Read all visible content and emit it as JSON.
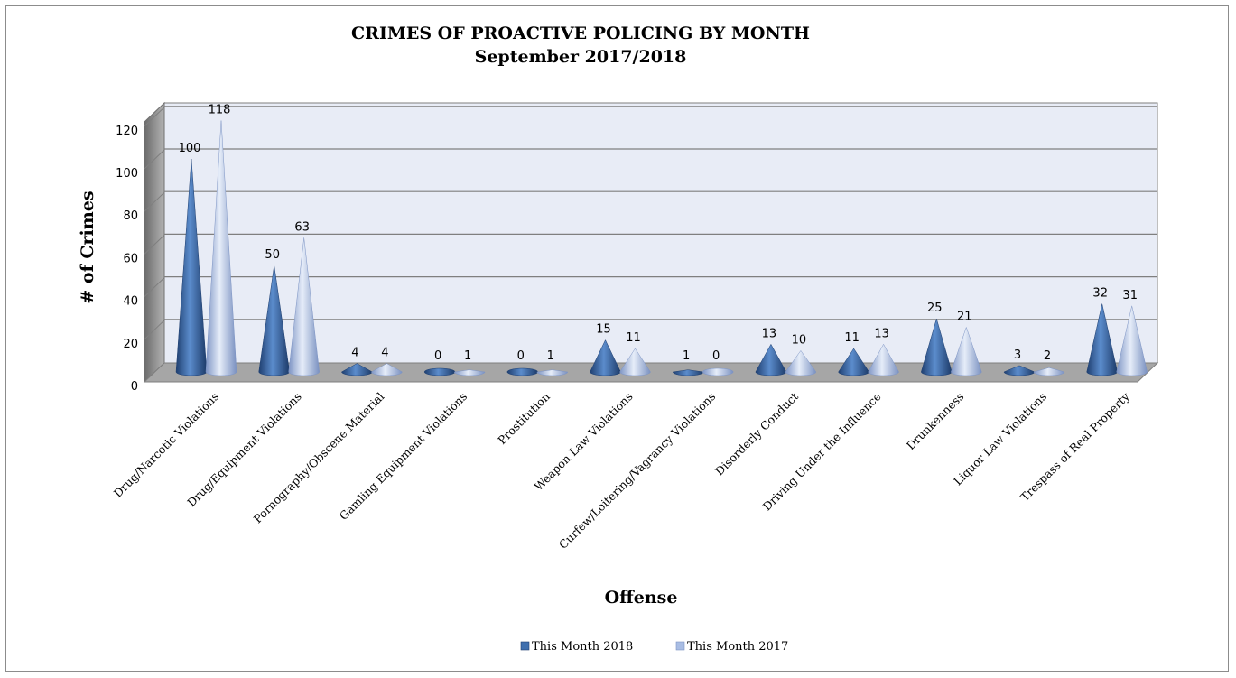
{
  "chart_data": {
    "type": "bar",
    "style": "3d-cone",
    "title": "CRIMES OF PROACTIVE POLICING BY MONTH",
    "subtitle": "September 2017/2018",
    "xlabel": "Offense",
    "ylabel": "# of Crimes",
    "ylim": [
      0,
      120
    ],
    "yticks": [
      0,
      20,
      40,
      60,
      80,
      100,
      120
    ],
    "grid": true,
    "legend_position": "bottom",
    "categories": [
      "Drug/Narcotic Violations",
      "Drug/Equipment Violations",
      "Pornography/Obscene Material",
      "Gamling Equipment Violations",
      "Prostitution",
      "Weapon Law Violations",
      "Curfew/Loitering/Vagrancy Violations",
      "Disorderly Conduct",
      "Driving Under the Influence",
      "Drunkenness",
      "Liquor Law Violations",
      "Trespass of Real Property"
    ],
    "series": [
      {
        "name": "This Month 2018",
        "color": "#3f6fae",
        "values": [
          100,
          50,
          4,
          0,
          0,
          15,
          1,
          13,
          11,
          25,
          3,
          32
        ]
      },
      {
        "name": "This Month 2017",
        "color": "#a9bde4",
        "values": [
          118,
          63,
          4,
          1,
          1,
          11,
          0,
          10,
          13,
          21,
          2,
          31
        ]
      }
    ]
  }
}
